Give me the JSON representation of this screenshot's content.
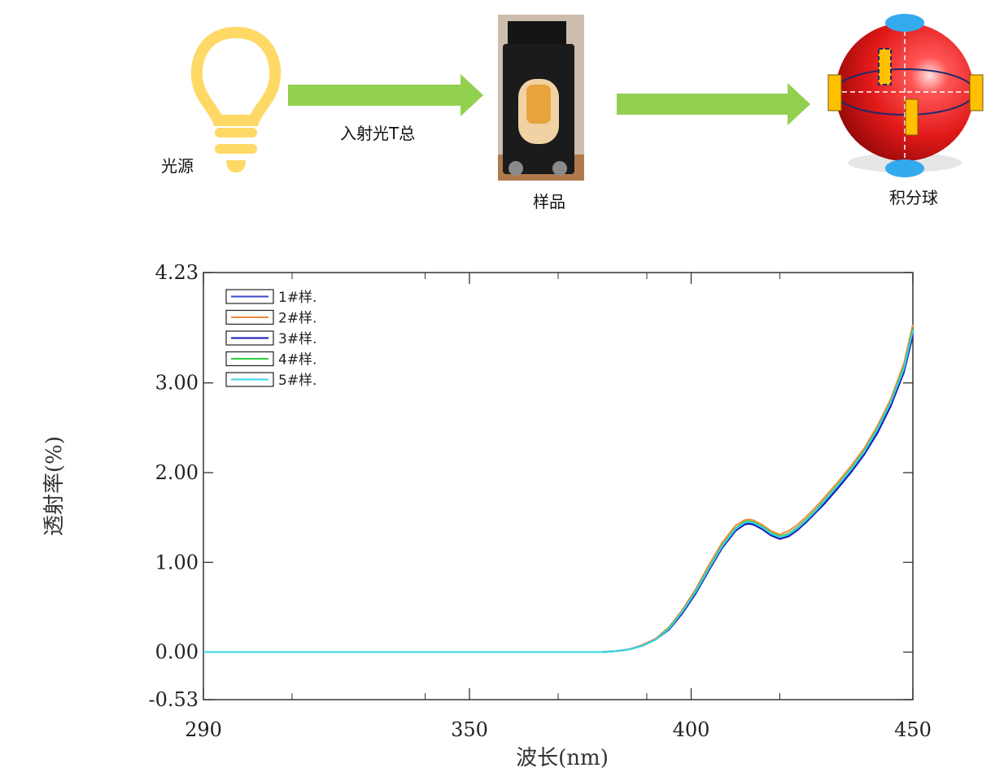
{
  "diagram": {
    "light_source_label": "光源",
    "incident_light_label": "入射光T总",
    "sample_label": "样品",
    "sphere_label": "积分球",
    "arrow_color": "#92d050",
    "bulb_color": "#ffd966",
    "sphere_color": "#e02020",
    "port_color": "#ffc000",
    "cap_color": "#33aaee"
  },
  "chart_data": {
    "type": "line",
    "xlabel": "波长(nm)",
    "ylabel": "透射率(%)",
    "xlim": [
      290,
      450
    ],
    "ylim": [
      -0.53,
      4.23
    ],
    "xticks": [
      {
        "value": 290,
        "label": "290"
      },
      {
        "value": 350,
        "label": "350"
      },
      {
        "value": 400,
        "label": "400"
      },
      {
        "value": 450,
        "label": "450"
      }
    ],
    "yticks": [
      {
        "value": -0.53,
        "label": "-0.53"
      },
      {
        "value": 0.0,
        "label": "0.00"
      },
      {
        "value": 1.0,
        "label": "1.00"
      },
      {
        "value": 2.0,
        "label": "2.00"
      },
      {
        "value": 3.0,
        "label": "3.00"
      },
      {
        "value": 4.23,
        "label": "4.23"
      }
    ],
    "x": [
      290,
      300,
      310,
      320,
      330,
      340,
      350,
      360,
      370,
      375,
      380,
      383,
      386,
      389,
      392,
      395,
      398,
      401,
      404,
      407,
      410,
      412,
      413,
      414,
      416,
      418,
      420,
      422,
      424,
      426,
      428,
      430,
      433,
      436,
      439,
      442,
      445,
      448,
      450
    ],
    "series": [
      {
        "name": "1#样.",
        "color": "#3a46c8",
        "values": [
          0,
          0,
          0,
          0,
          0,
          0,
          0,
          0,
          0,
          0,
          0,
          0.01,
          0.03,
          0.07,
          0.14,
          0.26,
          0.44,
          0.66,
          0.92,
          1.17,
          1.36,
          1.43,
          1.44,
          1.43,
          1.38,
          1.31,
          1.27,
          1.3,
          1.37,
          1.46,
          1.56,
          1.67,
          1.84,
          2.02,
          2.22,
          2.46,
          2.76,
          3.14,
          3.55
        ]
      },
      {
        "name": "2#样.",
        "color": "#f08a3c",
        "values": [
          0,
          0,
          0,
          0,
          0,
          0,
          0,
          0,
          0,
          0,
          0,
          0.01,
          0.03,
          0.08,
          0.15,
          0.28,
          0.47,
          0.7,
          0.97,
          1.22,
          1.41,
          1.47,
          1.48,
          1.47,
          1.42,
          1.35,
          1.31,
          1.35,
          1.42,
          1.51,
          1.61,
          1.72,
          1.89,
          2.07,
          2.27,
          2.52,
          2.82,
          3.22,
          3.65
        ]
      },
      {
        "name": "3#样.",
        "color": "#1616b8",
        "values": [
          0,
          0,
          0,
          0,
          0,
          0,
          0,
          0,
          0,
          0,
          0,
          0.01,
          0.03,
          0.07,
          0.14,
          0.25,
          0.43,
          0.65,
          0.91,
          1.16,
          1.35,
          1.42,
          1.43,
          1.42,
          1.37,
          1.3,
          1.26,
          1.29,
          1.36,
          1.45,
          1.55,
          1.65,
          1.82,
          2.0,
          2.2,
          2.44,
          2.74,
          3.12,
          3.53
        ]
      },
      {
        "name": "4#样.",
        "color": "#2ecc40",
        "values": [
          0,
          0,
          0,
          0,
          0,
          0,
          0,
          0,
          0,
          0,
          0,
          0.01,
          0.03,
          0.07,
          0.14,
          0.27,
          0.45,
          0.68,
          0.94,
          1.19,
          1.38,
          1.45,
          1.46,
          1.45,
          1.4,
          1.33,
          1.29,
          1.32,
          1.39,
          1.48,
          1.58,
          1.69,
          1.86,
          2.04,
          2.24,
          2.49,
          2.79,
          3.18,
          3.6
        ]
      },
      {
        "name": "5#样.",
        "color": "#33d6e6",
        "values": [
          0,
          0,
          0,
          0,
          0,
          0,
          0,
          0,
          0,
          0,
          0,
          0.01,
          0.03,
          0.07,
          0.14,
          0.26,
          0.45,
          0.67,
          0.93,
          1.18,
          1.37,
          1.44,
          1.45,
          1.44,
          1.39,
          1.32,
          1.28,
          1.31,
          1.38,
          1.47,
          1.57,
          1.68,
          1.85,
          2.03,
          2.23,
          2.48,
          2.78,
          3.16,
          3.58
        ]
      }
    ],
    "legend_position": "top-left",
    "grid": false
  }
}
